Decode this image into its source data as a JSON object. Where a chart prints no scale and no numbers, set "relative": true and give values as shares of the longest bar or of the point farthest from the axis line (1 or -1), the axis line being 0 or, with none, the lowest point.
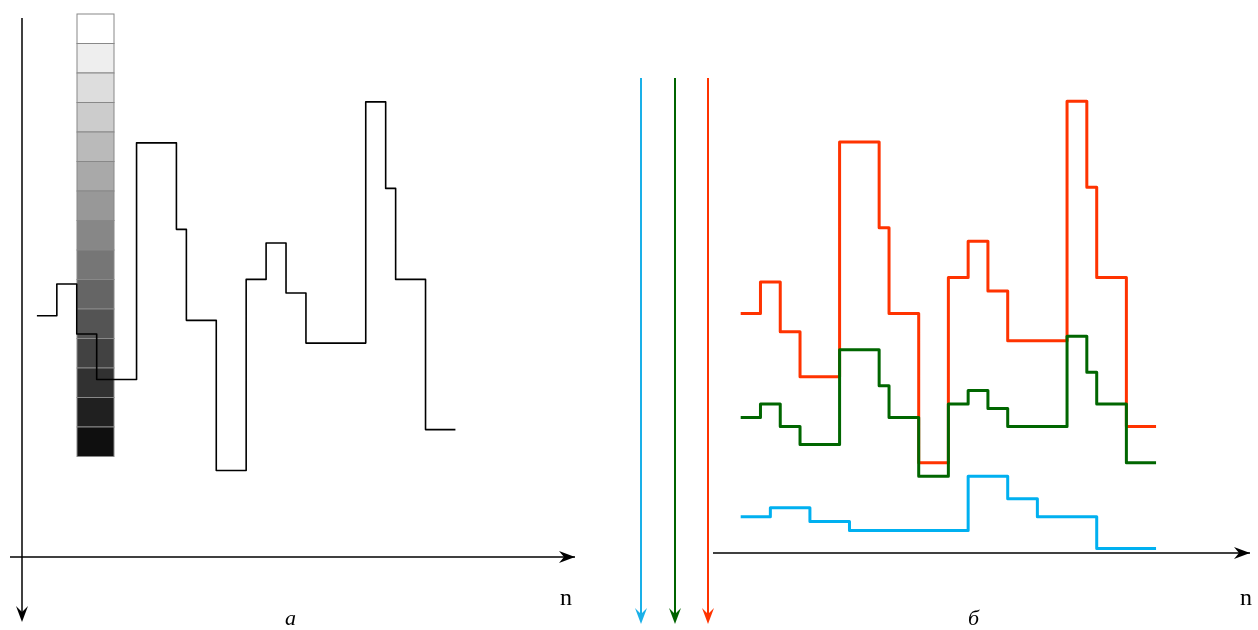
{
  "chart_data": [
    {
      "type": "step",
      "title": "а",
      "xlabel": "n",
      "relative": true,
      "categories": [
        null,
        null,
        null,
        null,
        null,
        null,
        null,
        null,
        null,
        null,
        null,
        null,
        null,
        null,
        null,
        null,
        null,
        null,
        null,
        null,
        null,
        null,
        null,
        null,
        null,
        null,
        null,
        null,
        null,
        null,
        null,
        null,
        null,
        null,
        null,
        null,
        null,
        null,
        null,
        null,
        null,
        null,
        null
      ],
      "series": [
        {
          "color": "#000000",
          "values": [
            0.53,
            0.53,
            0.6,
            0.6,
            0.49,
            0.49,
            0.39,
            0.39,
            0.39,
            0.39,
            0.91,
            0.91,
            0.91,
            0.91,
            0.72,
            0.52,
            0.52,
            0.52,
            0.19,
            0.19,
            0.19,
            0.61,
            0.61,
            0.69,
            0.69,
            0.58,
            0.58,
            0.47,
            0.47,
            0.47,
            0.47,
            0.47,
            0.47,
            1,
            1,
            0.81,
            0.61,
            0.61,
            0.61,
            0.28,
            0.28,
            0.28,
            0.28
          ]
        }
      ]
    },
    {
      "type": "step",
      "title": "б",
      "xlabel": "n",
      "relative": true,
      "categories": [
        null,
        null,
        null,
        null,
        null,
        null,
        null,
        null,
        null,
        null,
        null,
        null,
        null,
        null,
        null,
        null,
        null,
        null,
        null,
        null,
        null,
        null,
        null,
        null,
        null,
        null,
        null,
        null,
        null,
        null,
        null,
        null,
        null,
        null,
        null,
        null,
        null,
        null,
        null,
        null,
        null,
        null,
        null
      ],
      "series": [
        {
          "color": "#ff3300",
          "values": [
            0.53,
            0.53,
            0.6,
            0.6,
            0.49,
            0.49,
            0.39,
            0.39,
            0.39,
            0.39,
            0.91,
            0.91,
            0.91,
            0.91,
            0.72,
            0.53,
            0.53,
            0.53,
            0.2,
            0.2,
            0.2,
            0.61,
            0.61,
            0.69,
            0.69,
            0.58,
            0.58,
            0.47,
            0.47,
            0.47,
            0.47,
            0.47,
            0.47,
            1,
            1,
            0.81,
            0.61,
            0.61,
            0.61,
            0.28,
            0.28,
            0.28,
            0.28
          ]
        },
        {
          "color": "#006600",
          "values": [
            0.3,
            0.3,
            0.33,
            0.33,
            0.28,
            0.28,
            0.24,
            0.24,
            0.24,
            0.24,
            0.45,
            0.45,
            0.45,
            0.45,
            0.37,
            0.3,
            0.3,
            0.3,
            0.17,
            0.17,
            0.17,
            0.33,
            0.33,
            0.36,
            0.36,
            0.32,
            0.32,
            0.28,
            0.28,
            0.28,
            0.28,
            0.28,
            0.28,
            0.48,
            0.48,
            0.4,
            0.33,
            0.33,
            0.33,
            0.2,
            0.2,
            0.2,
            0.2
          ]
        },
        {
          "color": "#00b0f0",
          "values": [
            0.08,
            0.08,
            0.08,
            0.1,
            0.1,
            0.1,
            0.1,
            0.07,
            0.07,
            0.07,
            0.07,
            0.05,
            0.05,
            0.05,
            0.05,
            0.05,
            0.05,
            0.05,
            0.05,
            0.05,
            0.05,
            0.05,
            0.05,
            0.17,
            0.17,
            0.17,
            0.17,
            0.12,
            0.12,
            0.12,
            0.08,
            0.08,
            0.08,
            0.08,
            0.08,
            0.08,
            0.01,
            0.01,
            0.01,
            0.01,
            0.01,
            0.01,
            0.01
          ]
        }
      ]
    }
  ]
}
